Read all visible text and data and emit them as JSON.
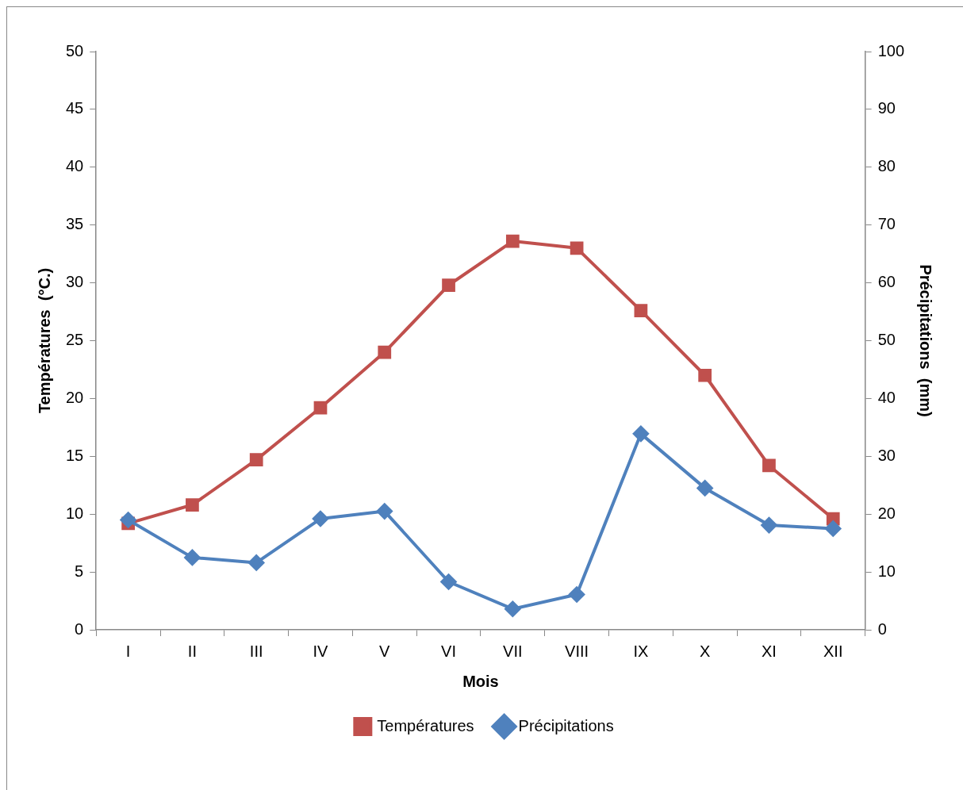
{
  "chart_data": {
    "type": "line",
    "xlabel": "Mois",
    "ylabel": "Températures  (°C.)",
    "y2label": "Précipitations  (mm)",
    "categories": [
      "I",
      "II",
      "III",
      "IV",
      "V",
      "VI",
      "VII",
      "VIII",
      "IX",
      "X",
      "XI",
      "XII"
    ],
    "series": [
      {
        "name": "Températures",
        "color": "#c0504d",
        "marker": "square",
        "values": [
          9.2,
          10.8,
          14.7,
          19.2,
          24.0,
          29.8,
          33.6,
          33.0,
          27.6,
          22.0,
          14.2,
          9.6
        ]
      },
      {
        "name": "Précipitations",
        "color": "#4f81bd",
        "marker": "diamond",
        "axis": "y2",
        "values": [
          19.0,
          12.5,
          11.6,
          19.2,
          20.5,
          8.3,
          3.6,
          6.1,
          33.9,
          24.5,
          18.1,
          17.5
        ]
      }
    ],
    "ylim": [
      0,
      50
    ],
    "yticks": [
      0,
      5,
      10,
      15,
      20,
      25,
      30,
      35,
      40,
      45,
      50
    ],
    "y2lim": [
      0,
      100
    ],
    "y2ticks": [
      0,
      10,
      20,
      30,
      40,
      50,
      60,
      70,
      80,
      90,
      100
    ],
    "grid": false,
    "legend": "bottom",
    "line_style": "solid"
  }
}
